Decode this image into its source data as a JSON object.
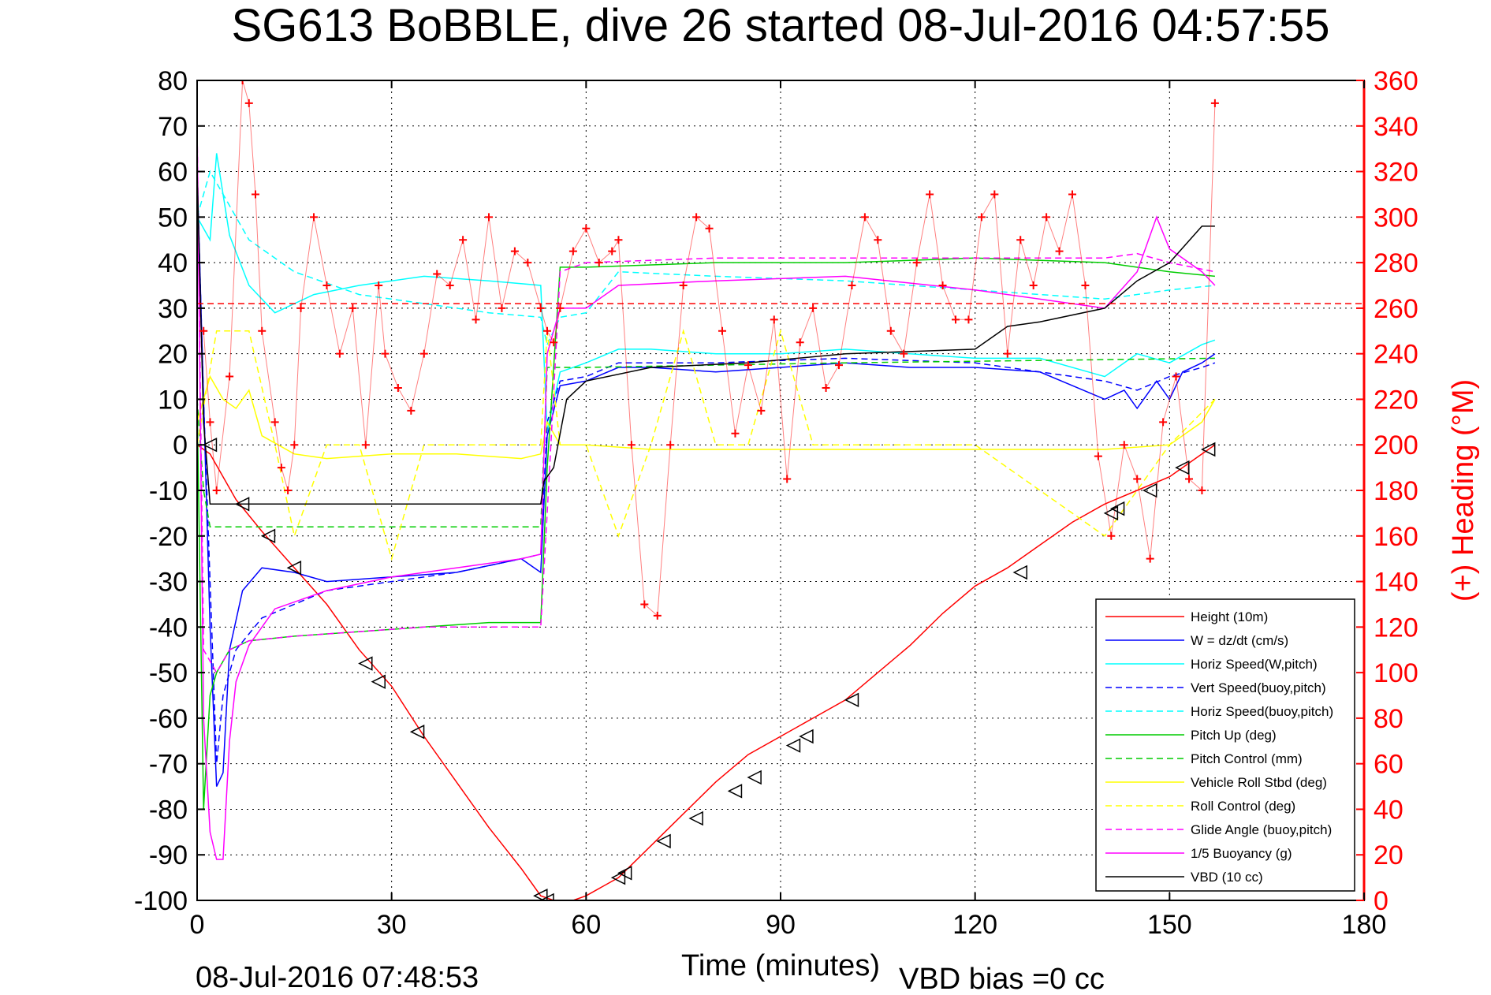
{
  "chart_data": {
    "type": "line",
    "title": "SG613 BoBBLE, dive 26 started 08-Jul-2016 04:57:55",
    "xlabel": "Time (minutes)",
    "ylabel": "",
    "ylabel_right": "(+) Heading (°M)",
    "xlim": [
      0,
      180
    ],
    "ylim": [
      -100,
      80
    ],
    "ylim_right": [
      0,
      360
    ],
    "x_ticks": [
      0,
      30,
      60,
      90,
      120,
      150,
      180
    ],
    "y_ticks": [
      80,
      70,
      60,
      50,
      40,
      30,
      20,
      10,
      0,
      -10,
      -20,
      -30,
      -40,
      -50,
      -60,
      -70,
      -80,
      -90,
      -100
    ],
    "y_right_ticks": [
      360,
      340,
      320,
      300,
      280,
      260,
      240,
      220,
      200,
      180,
      160,
      140,
      120,
      100,
      80,
      60,
      40,
      20,
      0
    ],
    "grid": true,
    "legend_position": "bottom-right",
    "footer_left": "08-Jul-2016 07:48:53",
    "footer_right": "VBD bias =0 cc",
    "series": [
      {
        "name": "Height (10m)",
        "color": "#ff0000",
        "style": "solid",
        "x": [
          0,
          2,
          6,
          10,
          15,
          20,
          25,
          30,
          35,
          40,
          45,
          50,
          53,
          55,
          58,
          60,
          65,
          70,
          75,
          80,
          85,
          90,
          95,
          100,
          105,
          110,
          115,
          120,
          125,
          130,
          135,
          140,
          145,
          150,
          155,
          157
        ],
        "y": [
          0,
          -2,
          -12,
          -19,
          -27,
          -35,
          -45,
          -53,
          -64,
          -74,
          -84,
          -93,
          -99,
          -100,
          -100,
          -99,
          -95,
          -88,
          -81,
          -74,
          -68,
          -64,
          -60,
          -56,
          -50,
          -44,
          -37,
          -31,
          -27,
          -22,
          -17,
          -13,
          -10,
          -7,
          -2,
          0
        ]
      },
      {
        "name": "W = dz/dt (cm/s)",
        "color": "#0000ff",
        "style": "solid",
        "x": [
          0,
          1,
          2,
          3,
          4,
          5,
          7,
          10,
          15,
          20,
          30,
          40,
          50,
          53,
          54,
          56,
          60,
          65,
          70,
          80,
          90,
          100,
          110,
          120,
          130,
          135,
          140,
          143,
          145,
          148,
          150,
          152,
          155,
          157
        ],
        "y": [
          60,
          10,
          -40,
          -75,
          -72,
          -45,
          -32,
          -27,
          -28,
          -30,
          -29,
          -28,
          -25,
          -28,
          2,
          13,
          14,
          17,
          17,
          16,
          17,
          18,
          17,
          17,
          16,
          13,
          10,
          12,
          8,
          14,
          10,
          16,
          18,
          20
        ]
      },
      {
        "name": "Horiz Speed(W,pitch)",
        "color": "#00ffff",
        "style": "solid",
        "x": [
          0,
          2,
          3,
          5,
          8,
          12,
          18,
          25,
          35,
          45,
          53,
          54,
          56,
          60,
          65,
          70,
          80,
          90,
          100,
          110,
          120,
          130,
          140,
          145,
          150,
          155,
          157
        ],
        "y": [
          50,
          45,
          64,
          46,
          35,
          29,
          33,
          35,
          37,
          36,
          35,
          3,
          16,
          18,
          21,
          21,
          20,
          20,
          21,
          20,
          19,
          19,
          15,
          20,
          18,
          22,
          23
        ]
      },
      {
        "name": "Vert Speed(buoy,pitch)",
        "color": "#0000ff",
        "style": "dashed",
        "x": [
          0,
          1,
          2,
          3,
          4,
          6,
          10,
          20,
          30,
          40,
          50,
          53,
          54,
          56,
          60,
          65,
          80,
          100,
          120,
          140,
          145,
          150,
          155,
          157
        ],
        "y": [
          60,
          10,
          -30,
          -70,
          -55,
          -45,
          -38,
          -32,
          -30,
          -28,
          -25,
          -24,
          5,
          14,
          15,
          18,
          18,
          19,
          18,
          14,
          12,
          15,
          17,
          18
        ]
      },
      {
        "name": "Horiz Speed(buoy,pitch)",
        "color": "#00ffff",
        "style": "dashed",
        "x": [
          0,
          2,
          4,
          8,
          15,
          25,
          35,
          45,
          53,
          54,
          56,
          60,
          65,
          80,
          100,
          120,
          140,
          150,
          157
        ],
        "y": [
          50,
          60,
          55,
          45,
          38,
          33,
          31,
          29,
          28,
          22,
          28,
          29,
          38,
          37,
          36,
          34,
          32,
          34,
          35
        ]
      },
      {
        "name": "Pitch Up (deg)",
        "color": "#00cc00",
        "style": "solid",
        "x": [
          0,
          1,
          2,
          3,
          5,
          8,
          15,
          25,
          35,
          45,
          53,
          54,
          56,
          60,
          80,
          100,
          120,
          140,
          150,
          157
        ],
        "y": [
          10,
          -80,
          -55,
          -50,
          -45,
          -43,
          -42,
          -41,
          -40,
          -39,
          -39,
          -5,
          39,
          39,
          40,
          40,
          41,
          40,
          38,
          37
        ]
      },
      {
        "name": "Pitch Control (mm)",
        "color": "#00cc00",
        "style": "dashed",
        "x": [
          0,
          1,
          2,
          53,
          54,
          60,
          100,
          157
        ],
        "y": [
          10,
          -10,
          -18,
          -18,
          17,
          17,
          18,
          19
        ]
      },
      {
        "name": "Vehicle Roll Stbd (deg)",
        "color": "#ffff00",
        "style": "solid",
        "x": [
          0,
          2,
          4,
          6,
          8,
          10,
          15,
          20,
          30,
          40,
          50,
          53,
          54,
          56,
          60,
          70,
          80,
          90,
          100,
          110,
          120,
          130,
          140,
          150,
          155,
          157
        ],
        "y": [
          5,
          15,
          10,
          8,
          12,
          2,
          -2,
          -3,
          -2,
          -2,
          -3,
          -2,
          5,
          0,
          0,
          -1,
          -1,
          -1,
          -1,
          -1,
          -1,
          -1,
          -1,
          0,
          5,
          10
        ]
      },
      {
        "name": "Roll Control (deg)",
        "color": "#ffff00",
        "style": "dashed",
        "x": [
          0,
          3,
          8,
          12,
          15,
          20,
          25,
          30,
          35,
          40,
          50,
          53,
          54,
          56,
          60,
          65,
          70,
          75,
          80,
          85,
          90,
          95,
          100,
          110,
          120,
          140,
          150,
          157
        ],
        "y": [
          0,
          25,
          25,
          0,
          -20,
          0,
          0,
          -25,
          0,
          0,
          0,
          0,
          25,
          0,
          0,
          -20,
          0,
          25,
          0,
          0,
          25,
          0,
          0,
          0,
          0,
          -20,
          0,
          10
        ]
      },
      {
        "name": "Glide Angle (buoy,pitch)",
        "color": "#ff00ff",
        "style": "dashed",
        "x": [
          0,
          1,
          3,
          5,
          8,
          15,
          25,
          35,
          45,
          53,
          54,
          56,
          60,
          80,
          100,
          120,
          140,
          145,
          150,
          157
        ],
        "y": [
          70,
          -45,
          -50,
          -45,
          -43,
          -42,
          -41,
          -40,
          -40,
          -40,
          -15,
          38,
          40,
          41,
          41,
          41,
          41,
          42,
          40,
          38
        ]
      },
      {
        "name": "1/5 Buoyancy (g)",
        "color": "#ff00ff",
        "style": "solid",
        "x": [
          0,
          1,
          2,
          3,
          4,
          5,
          6,
          8,
          12,
          20,
          30,
          40,
          50,
          53,
          54,
          56,
          60,
          65,
          80,
          100,
          120,
          140,
          145,
          148,
          150,
          155,
          157
        ],
        "y": [
          70,
          -60,
          -85,
          -91,
          -91,
          -65,
          -52,
          -44,
          -36,
          -32,
          -29,
          -27,
          -25,
          -24,
          20,
          30,
          30,
          35,
          36,
          37,
          34,
          30,
          38,
          50,
          43,
          38,
          35
        ]
      },
      {
        "name": "VBD (10 cc)",
        "color": "#000000",
        "style": "solid",
        "x": [
          0,
          1,
          2,
          53,
          53.5,
          55,
          57,
          60,
          70,
          85,
          100,
          120,
          125,
          130,
          140,
          145,
          150,
          155,
          157
        ],
        "y": [
          60,
          5,
          -13,
          -13,
          -8,
          -5,
          10,
          14,
          17,
          18,
          20,
          21,
          26,
          27,
          30,
          36,
          40,
          48,
          48
        ]
      },
      {
        "name": "Heading",
        "color": "#ff0000",
        "style": "markers",
        "axis": "right",
        "x": [
          1,
          2,
          3,
          5,
          7,
          8,
          9,
          10,
          12,
          13,
          14,
          15,
          16,
          18,
          20,
          22,
          24,
          26,
          28,
          29,
          31,
          33,
          35,
          37,
          39,
          41,
          43,
          45,
          47,
          49,
          51,
          53,
          54,
          55,
          56,
          58,
          60,
          62,
          64,
          65,
          67,
          69,
          71,
          73,
          75,
          77,
          79,
          81,
          83,
          85,
          87,
          89,
          91,
          93,
          95,
          97,
          99,
          101,
          103,
          105,
          107,
          109,
          111,
          113,
          115,
          117,
          119,
          121,
          123,
          125,
          127,
          129,
          131,
          133,
          135,
          137,
          139,
          141,
          143,
          145,
          147,
          149,
          151,
          153,
          155,
          157
        ],
        "y": [
          250,
          210,
          180,
          230,
          360,
          350,
          310,
          250,
          210,
          190,
          180,
          200,
          260,
          300,
          270,
          240,
          260,
          200,
          270,
          240,
          225,
          215,
          240,
          275,
          270,
          290,
          255,
          300,
          260,
          285,
          280,
          260,
          250,
          245,
          260,
          285,
          295,
          280,
          285,
          290,
          200,
          130,
          125,
          200,
          270,
          300,
          295,
          250,
          205,
          235,
          215,
          255,
          185,
          245,
          260,
          225,
          235,
          270,
          300,
          290,
          250,
          240,
          280,
          310,
          270,
          255,
          255,
          300,
          310,
          240,
          290,
          270,
          300,
          285,
          310,
          270,
          195,
          160,
          200,
          185,
          150,
          210,
          230,
          185,
          180,
          350
        ]
      }
    ],
    "markers": {
      "name": "Height samples",
      "x": [
        2,
        7,
        11,
        15,
        26,
        28,
        34,
        53,
        54,
        65,
        66,
        72,
        77,
        83,
        86,
        92,
        94,
        101,
        127,
        141,
        142,
        147,
        152,
        156
      ],
      "y": [
        0,
        -13,
        -20,
        -27,
        -48,
        -52,
        -63,
        -99,
        -100,
        -95,
        -94,
        -87,
        -82,
        -76,
        -73,
        -66,
        -64,
        -56,
        -28,
        -15,
        -14,
        -10,
        -5,
        -1
      ]
    }
  }
}
